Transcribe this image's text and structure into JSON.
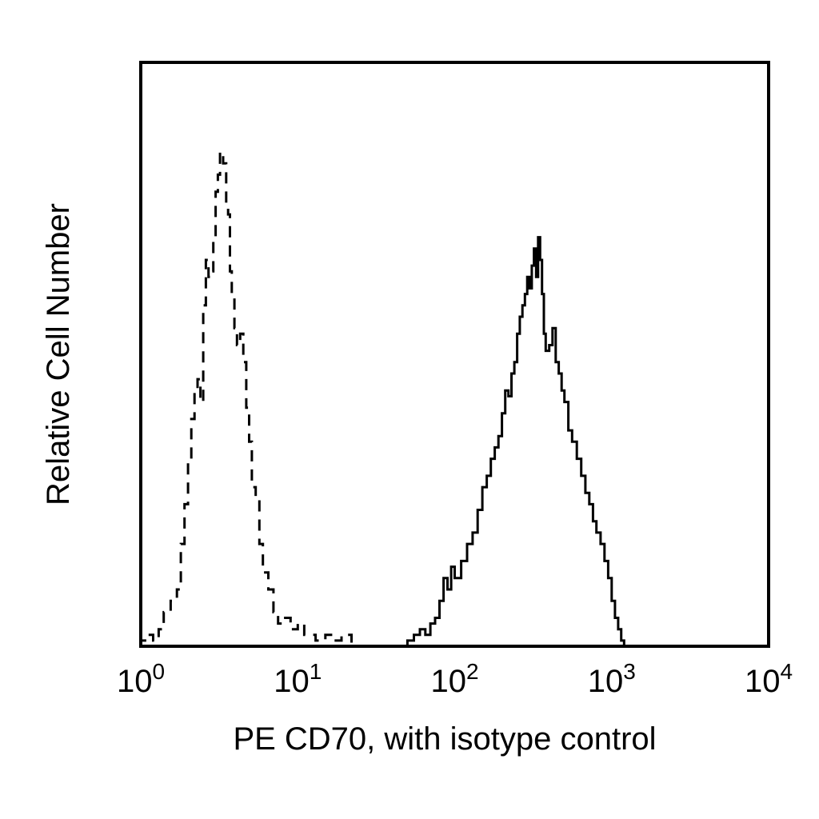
{
  "chart_data": {
    "type": "histogram",
    "xlabel": "PE CD70, with isotype control",
    "ylabel": "Relative Cell Number",
    "x_scale": "log",
    "xlim": [
      1,
      10000
    ],
    "ylim": [
      0,
      1
    ],
    "x_ticks": [
      {
        "value": 1,
        "base": "10",
        "exp": "0"
      },
      {
        "value": 10,
        "base": "10",
        "exp": "1"
      },
      {
        "value": 100,
        "base": "10",
        "exp": "2"
      },
      {
        "value": 1000,
        "base": "10",
        "exp": "3"
      },
      {
        "value": 10000,
        "base": "10",
        "exp": "4"
      }
    ],
    "grid": false,
    "series": [
      {
        "style": "dashed",
        "color": "#000000",
        "points": [
          [
            1.0,
            0.01
          ],
          [
            1.1,
            0.02
          ],
          [
            1.2,
            0.01
          ],
          [
            1.3,
            0.03
          ],
          [
            1.4,
            0.06
          ],
          [
            1.55,
            0.08
          ],
          [
            1.7,
            0.1
          ],
          [
            1.8,
            0.18
          ],
          [
            1.9,
            0.25
          ],
          [
            2.0,
            0.33
          ],
          [
            2.1,
            0.4
          ],
          [
            2.2,
            0.45
          ],
          [
            2.3,
            0.47
          ],
          [
            2.4,
            0.43
          ],
          [
            2.5,
            0.6
          ],
          [
            2.6,
            0.68
          ],
          [
            2.7,
            0.65
          ],
          [
            2.8,
            0.66
          ],
          [
            2.9,
            0.72
          ],
          [
            3.0,
            0.8
          ],
          [
            3.1,
            0.83
          ],
          [
            3.2,
            0.87
          ],
          [
            3.35,
            0.85
          ],
          [
            3.5,
            0.78
          ],
          [
            3.6,
            0.76
          ],
          [
            3.7,
            0.66
          ],
          [
            3.8,
            0.62
          ],
          [
            3.95,
            0.56
          ],
          [
            4.1,
            0.53
          ],
          [
            4.3,
            0.55
          ],
          [
            4.5,
            0.5
          ],
          [
            4.7,
            0.42
          ],
          [
            4.9,
            0.36
          ],
          [
            5.1,
            0.28
          ],
          [
            5.4,
            0.26
          ],
          [
            5.7,
            0.18
          ],
          [
            6.0,
            0.13
          ],
          [
            6.5,
            0.1
          ],
          [
            7.0,
            0.06
          ],
          [
            7.5,
            0.04
          ],
          [
            8.0,
            0.05
          ],
          [
            9.0,
            0.03
          ],
          [
            10.0,
            0.04
          ],
          [
            11.0,
            0.02
          ],
          [
            13.0,
            0.01
          ],
          [
            15.0,
            0.02
          ],
          [
            17.0,
            0.01
          ],
          [
            19.0,
            0.02
          ],
          [
            22.0,
            0.0
          ]
        ]
      },
      {
        "style": "solid",
        "color": "#000000",
        "points": [
          [
            50,
            0.01
          ],
          [
            55,
            0.02
          ],
          [
            60,
            0.03
          ],
          [
            65,
            0.02
          ],
          [
            70,
            0.04
          ],
          [
            75,
            0.05
          ],
          [
            80,
            0.08
          ],
          [
            85,
            0.12
          ],
          [
            90,
            0.1
          ],
          [
            95,
            0.14
          ],
          [
            100,
            0.12
          ],
          [
            110,
            0.15
          ],
          [
            120,
            0.18
          ],
          [
            130,
            0.2
          ],
          [
            140,
            0.24
          ],
          [
            150,
            0.28
          ],
          [
            160,
            0.3
          ],
          [
            170,
            0.33
          ],
          [
            180,
            0.35
          ],
          [
            190,
            0.37
          ],
          [
            200,
            0.41
          ],
          [
            210,
            0.45
          ],
          [
            220,
            0.44
          ],
          [
            230,
            0.48
          ],
          [
            240,
            0.5
          ],
          [
            250,
            0.55
          ],
          [
            260,
            0.58
          ],
          [
            270,
            0.6
          ],
          [
            280,
            0.62
          ],
          [
            290,
            0.65
          ],
          [
            300,
            0.63
          ],
          [
            310,
            0.67
          ],
          [
            320,
            0.7
          ],
          [
            330,
            0.65
          ],
          [
            340,
            0.72
          ],
          [
            350,
            0.68
          ],
          [
            360,
            0.62
          ],
          [
            370,
            0.55
          ],
          [
            380,
            0.52
          ],
          [
            400,
            0.53
          ],
          [
            420,
            0.56
          ],
          [
            440,
            0.5
          ],
          [
            460,
            0.48
          ],
          [
            480,
            0.45
          ],
          [
            500,
            0.43
          ],
          [
            530,
            0.38
          ],
          [
            560,
            0.36
          ],
          [
            600,
            0.33
          ],
          [
            640,
            0.3
          ],
          [
            680,
            0.27
          ],
          [
            720,
            0.25
          ],
          [
            760,
            0.22
          ],
          [
            800,
            0.2
          ],
          [
            850,
            0.18
          ],
          [
            900,
            0.15
          ],
          [
            950,
            0.12
          ],
          [
            1000,
            0.08
          ],
          [
            1050,
            0.05
          ],
          [
            1100,
            0.03
          ],
          [
            1150,
            0.01
          ],
          [
            1200,
            0.0
          ]
        ]
      }
    ]
  }
}
